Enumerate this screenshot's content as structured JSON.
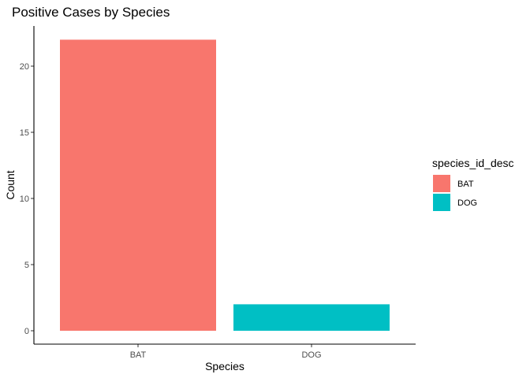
{
  "chart_data": {
    "type": "bar",
    "title": "Positive Cases by Species",
    "xlabel": "Species",
    "ylabel": "Count",
    "categories": [
      "BAT",
      "DOG"
    ],
    "values": [
      22,
      2
    ],
    "colors": [
      "#F8766D",
      "#00BFC4"
    ],
    "ylim": [
      0,
      23.1
    ],
    "yticks": [
      0,
      5,
      10,
      15,
      20
    ],
    "grid": false,
    "legend": {
      "title": "species_id_desc",
      "placement": "right",
      "entries": [
        {
          "label": "BAT",
          "color": "#F8766D"
        },
        {
          "label": "DOG",
          "color": "#00BFC4"
        }
      ]
    }
  }
}
